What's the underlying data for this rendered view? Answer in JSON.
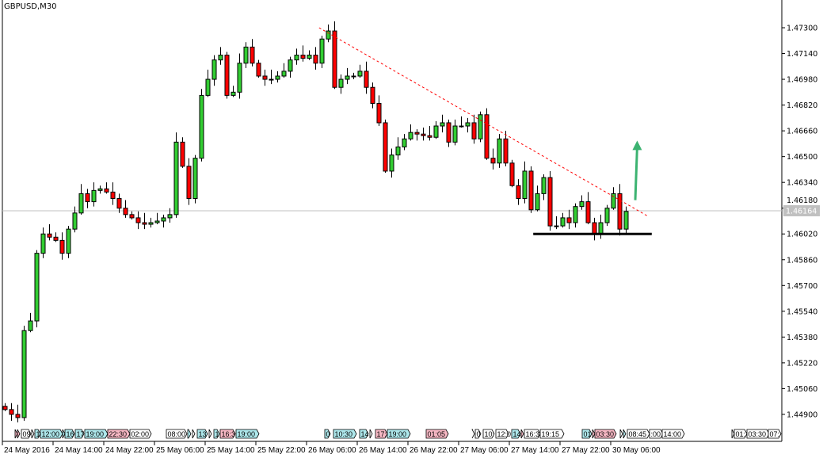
{
  "header": {
    "title": "GBPUSD,M30"
  },
  "colors": {
    "bull": "#32cd32",
    "bear": "#ff0000",
    "outline": "#000000",
    "bid_line": "#c0c0c0",
    "trendline": "#ff0000",
    "arrow": "#3cb371",
    "tag_cyan": "#aee8ec",
    "tag_pink": "#f7b8c4",
    "tag_white": "#ffffff"
  },
  "chart_data": {
    "type": "candlestick",
    "symbol": "GBPUSD",
    "timeframe": "M30",
    "ylim": [
      1.4482,
      1.4745
    ],
    "grid": false,
    "y_ticks": [
      "1.47300",
      "1.47140",
      "1.46980",
      "1.46820",
      "1.46660",
      "1.46500",
      "1.46340",
      "1.46180",
      "1.46020",
      "1.45860",
      "1.45700",
      "1.45540",
      "1.45380",
      "1.45220",
      "1.45060",
      "1.44900"
    ],
    "x_ticks": [
      "24 May 2016",
      "24 May 14:00",
      "24 May 22:00",
      "25 May 06:00",
      "25 May 14:00",
      "25 May 22:00",
      "26 May 06:00",
      "26 May 14:00",
      "26 May 22:00",
      "27 May 06:00",
      "27 May 14:00",
      "27 May 22:00",
      "30 May 06:00"
    ],
    "current_price": "1.46164",
    "first_open": 1.4495,
    "closes": [
      1.4493,
      1.449,
      1.4488,
      1.4542,
      1.4548,
      1.459,
      1.4602,
      1.46,
      1.4598,
      1.459,
      1.4605,
      1.4615,
      1.4627,
      1.4622,
      1.4629,
      1.463,
      1.4628,
      1.4624,
      1.4618,
      1.4614,
      1.4612,
      1.4609,
      1.4608,
      1.4609,
      1.461,
      1.4612,
      1.4614,
      1.4659,
      1.4644,
      1.4624,
      1.4649,
      1.4688,
      1.4698,
      1.471,
      1.4713,
      1.4688,
      1.469,
      1.4708,
      1.4718,
      1.4708,
      1.47,
      1.4698,
      1.4698,
      1.47,
      1.4703,
      1.471,
      1.4713,
      1.4711,
      1.4713,
      1.4708,
      1.4723,
      1.4728,
      1.4693,
      1.4698,
      1.47,
      1.47,
      1.4703,
      1.4693,
      1.4683,
      1.4671,
      1.4641,
      1.4651,
      1.4656,
      1.4661,
      1.4665,
      1.4664,
      1.4663,
      1.4662,
      1.4669,
      1.4671,
      1.4659,
      1.4669,
      1.4669,
      1.4671,
      1.4661,
      1.4676,
      1.4649,
      1.4646,
      1.4661,
      1.4646,
      1.4632,
      1.4624,
      1.4641,
      1.4617,
      1.4627,
      1.4637,
      1.4607,
      1.4607,
      1.4612,
      1.4609,
      1.4619,
      1.4622,
      1.4609,
      1.4602,
      1.4609,
      1.4618,
      1.4627,
      1.4605,
      1.4616
    ],
    "annotations": {
      "trendline": {
        "from": [
          49.6,
          1.473
        ],
        "to": [
          101.5,
          1.4613
        ],
        "style": "dashed"
      },
      "support": {
        "from": [
          83.4,
          1.4602
        ],
        "to": [
          102.1,
          1.4602
        ]
      },
      "arrow_up": {
        "from": [
          99.5,
          1.4623
        ],
        "to": [
          99.8,
          1.466
        ]
      }
    },
    "event_tags": [
      {
        "text": "",
        "c": "pink"
      },
      {
        "text": "",
        "c": "pink"
      },
      {
        "text": "09",
        "c": "white"
      },
      {
        "text": "",
        "c": "white"
      },
      {
        "text": "1",
        "c": "cyan"
      },
      {
        "text": "12:00",
        "c": "cyan"
      },
      {
        "text": "",
        "c": "cyan"
      },
      {
        "text": "16",
        "c": "cyan"
      },
      {
        "text": "17",
        "c": "cyan"
      },
      {
        "text": "19:00",
        "c": "cyan"
      },
      {
        "text": "22:30",
        "c": "pink"
      },
      {
        "text": "02:00",
        "c": "white"
      },
      {
        "text": "08:00",
        "c": "white"
      },
      {
        "text": "",
        "c": "cyan"
      },
      {
        "text": "",
        "c": "white"
      },
      {
        "text": "13",
        "c": "cyan"
      },
      {
        "text": "",
        "c": "white"
      },
      {
        "text": "1",
        "c": "cyan"
      },
      {
        "text": "16:3",
        "c": "pink"
      },
      {
        "text": "19:00",
        "c": "cyan"
      },
      {
        "text": "0",
        "c": "cyan"
      },
      {
        "text": "10:30",
        "c": "cyan"
      },
      {
        "text": "14",
        "c": "cyan"
      },
      {
        "text": "",
        "c": "white"
      },
      {
        "text": "17:",
        "c": "pink"
      },
      {
        "text": "19:00",
        "c": "cyan"
      },
      {
        "text": "01:05",
        "c": "pink"
      },
      {
        "text": "",
        "c": "white"
      },
      {
        "text": "0",
        "c": "white"
      },
      {
        "text": "10:",
        "c": "white"
      },
      {
        "text": "12:0",
        "c": "white"
      },
      {
        "text": "14",
        "c": "cyan"
      },
      {
        "text": "",
        "c": "pink"
      },
      {
        "text": "16:3",
        "c": "white"
      },
      {
        "text": "19:15",
        "c": "white"
      },
      {
        "text": "01",
        "c": "cyan"
      },
      {
        "text": "",
        "c": "pink"
      },
      {
        "text": "03:30",
        "c": "pink"
      },
      {
        "text": "",
        "c": "white"
      },
      {
        "text": "",
        "c": "cyan"
      },
      {
        "text": "08:45",
        "c": "white"
      },
      {
        "text": ":00",
        "c": "white"
      },
      {
        "text": "14:00",
        "c": "white"
      },
      {
        "text": "",
        "c": "white"
      },
      {
        "text": "01:",
        "c": "white"
      },
      {
        "text": "03:30",
        "c": "white"
      },
      {
        "text": "07:",
        "c": "white"
      }
    ]
  }
}
